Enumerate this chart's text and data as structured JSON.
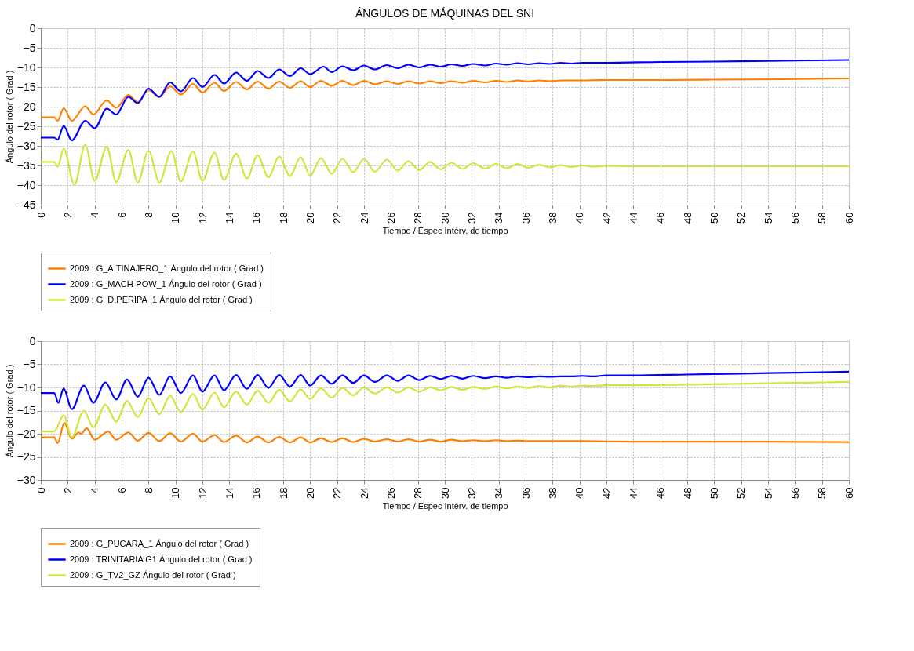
{
  "chart_data": [
    {
      "type": "line",
      "title": "ÁNGULOS DE MÁQUINAS DEL SNI",
      "xlabel": "Tiempo / Espec Intérv. de tiempo",
      "ylabel": "Ángulo del rotor ( Grad )",
      "xlim": [
        0,
        60
      ],
      "xticks": [
        0,
        2,
        4,
        6,
        8,
        10,
        12,
        14,
        16,
        18,
        20,
        22,
        24,
        26,
        28,
        30,
        32,
        34,
        36,
        38,
        40,
        42,
        44,
        46,
        48,
        50,
        52,
        54,
        56,
        58,
        60
      ],
      "ylim": [
        -45,
        0
      ],
      "yticks": [
        0,
        -5,
        -10,
        -15,
        -20,
        -25,
        -30,
        -35,
        -40,
        -45
      ],
      "grid": true,
      "legend": "bottom",
      "line_style": "solid",
      "marker": "none",
      "series": [
        {
          "name": "2009 : G_A.TINAJERO_1 Ángulo del rotor ( Grad )",
          "color": "#ff7f00",
          "x": [
            0,
            1.0,
            1.25,
            1.7,
            2.3,
            3.3,
            3.9,
            4.9,
            5.6,
            6.5,
            7.2,
            8.0,
            8.8,
            9.6,
            10.4,
            11.3,
            12.0,
            12.9,
            13.6,
            14.5,
            15.3,
            16.1,
            16.9,
            17.7,
            18.5,
            19.3,
            20.0,
            20.8,
            21.6,
            22.4,
            23.2,
            24,
            24.8,
            25.7,
            26.5,
            27.3,
            28.1,
            28.9,
            29.7,
            30.5,
            31.3,
            32.1,
            33,
            33.8,
            34.6,
            35.4,
            36.2,
            37,
            37.8,
            38.6,
            40,
            42,
            46,
            50,
            55,
            60
          ],
          "values": [
            -22.7,
            -22.7,
            -23.6,
            -20.4,
            -23.6,
            -19.9,
            -22.0,
            -18.4,
            -20.3,
            -17.0,
            -18.8,
            -15.8,
            -17.6,
            -14.8,
            -16.9,
            -14.2,
            -16.4,
            -13.9,
            -16.0,
            -13.7,
            -15.6,
            -13.6,
            -15.4,
            -13.6,
            -15.2,
            -13.5,
            -15.0,
            -13.4,
            -14.7,
            -13.4,
            -14.5,
            -13.4,
            -14.3,
            -13.5,
            -14.2,
            -13.5,
            -14.1,
            -13.5,
            -14.0,
            -13.5,
            -13.9,
            -13.4,
            -13.8,
            -13.4,
            -13.7,
            -13.3,
            -13.6,
            -13.3,
            -13.5,
            -13.3,
            -13.3,
            -13.2,
            -13.2,
            -13.1,
            -13.0,
            -12.8
          ]
        },
        {
          "name": "2009 : G_MACH-POW_1 Ángulo del rotor ( Grad )",
          "color": "#0000ff",
          "x": [
            0,
            1.0,
            1.25,
            1.7,
            2.3,
            3.3,
            4.0,
            4.9,
            5.6,
            6.5,
            7.2,
            8.0,
            8.8,
            9.6,
            10.4,
            11.3,
            12.0,
            12.9,
            13.6,
            14.5,
            15.3,
            16.1,
            16.9,
            17.7,
            18.5,
            19.3,
            20.0,
            21,
            21.6,
            22.4,
            23.2,
            24,
            24.8,
            25.7,
            26.5,
            27.3,
            28.1,
            28.9,
            29.7,
            30.5,
            31.3,
            32.1,
            33,
            33.8,
            34.6,
            35.4,
            36.2,
            37,
            37.8,
            38.6,
            39.4,
            40.2,
            42,
            46,
            50,
            55,
            60
          ],
          "values": [
            -27.9,
            -27.9,
            -28.4,
            -24.9,
            -28.6,
            -23.6,
            -25.5,
            -20.5,
            -22.0,
            -17.5,
            -19.1,
            -15.4,
            -17.5,
            -13.8,
            -16.1,
            -12.7,
            -15.0,
            -11.9,
            -14.1,
            -11.3,
            -13.4,
            -10.9,
            -12.7,
            -10.5,
            -12.2,
            -10.2,
            -11.7,
            -9.8,
            -11.2,
            -9.7,
            -10.7,
            -9.5,
            -10.5,
            -9.4,
            -10.2,
            -9.3,
            -10.0,
            -9.3,
            -9.8,
            -9.2,
            -9.6,
            -9.1,
            -9.5,
            -9.0,
            -9.3,
            -8.9,
            -9.2,
            -8.9,
            -9.1,
            -8.8,
            -9.0,
            -8.8,
            -8.8,
            -8.6,
            -8.5,
            -8.3,
            -8.1
          ]
        },
        {
          "name": "2009 : G_D.PERIPA_1 Ángulo del rotor ( Grad )",
          "color": "#d0e63a",
          "x": [
            0,
            1.0,
            1.25,
            1.7,
            2.5,
            3.3,
            4.0,
            4.9,
            5.6,
            6.5,
            7.2,
            8.0,
            8.8,
            9.7,
            10.4,
            11.3,
            12.0,
            12.9,
            13.6,
            14.5,
            15.3,
            16.1,
            16.9,
            17.7,
            18.5,
            19.3,
            20.0,
            20.8,
            21.6,
            22.4,
            23.2,
            24,
            24.8,
            25.7,
            26.5,
            27.3,
            28.1,
            28.9,
            29.7,
            30.5,
            31.3,
            32.1,
            33,
            33.8,
            34.6,
            35.4,
            36.2,
            37,
            37.8,
            38.6,
            39.4,
            40.2,
            41,
            42,
            44,
            50,
            60
          ],
          "values": [
            -34.1,
            -34.1,
            -35.3,
            -30.7,
            -39.9,
            -29.7,
            -38.9,
            -30.2,
            -39.2,
            -31.0,
            -39.3,
            -31.2,
            -39.3,
            -31.3,
            -39.1,
            -31.4,
            -38.9,
            -31.7,
            -38.7,
            -32.0,
            -38.3,
            -32.4,
            -38.0,
            -32.7,
            -37.7,
            -32.9,
            -37.6,
            -33.1,
            -37.1,
            -33.3,
            -36.7,
            -33.3,
            -36.6,
            -33.5,
            -36.3,
            -33.9,
            -36.2,
            -34.1,
            -36.0,
            -34.3,
            -35.9,
            -34.4,
            -35.8,
            -34.6,
            -35.7,
            -34.6,
            -35.6,
            -34.8,
            -35.5,
            -34.9,
            -35.4,
            -35.0,
            -35.3,
            -35.1,
            -35.2,
            -35.2,
            -35.2
          ]
        }
      ]
    },
    {
      "type": "line",
      "xlabel": "Tiempo / Espec Intérv. de tiempo",
      "ylabel": "Ángulo del rotor ( Grad )",
      "xlim": [
        0,
        60
      ],
      "xticks": [
        0,
        2,
        4,
        6,
        8,
        10,
        12,
        14,
        16,
        18,
        20,
        22,
        24,
        26,
        28,
        30,
        32,
        34,
        36,
        38,
        40,
        42,
        44,
        46,
        48,
        50,
        52,
        54,
        56,
        58,
        60
      ],
      "ylim": [
        -30,
        0
      ],
      "yticks": [
        0,
        -5,
        -10,
        -15,
        -20,
        -25,
        -30
      ],
      "grid": true,
      "legend": "bottom",
      "line_style": "solid",
      "marker": "none",
      "series": [
        {
          "name": "2009 : G_PUCARA_1 Ángulo del rotor ( Grad )",
          "color": "#ff7f00",
          "x": [
            0,
            1.0,
            1.25,
            1.75,
            2.3,
            2.8,
            3.0,
            3.4,
            4.0,
            5.0,
            5.6,
            6.5,
            7.2,
            8.0,
            8.8,
            9.6,
            10.4,
            11.3,
            12.0,
            12.9,
            13.6,
            14.5,
            15.3,
            16.1,
            16.9,
            17.7,
            18.5,
            19.3,
            20.0,
            20.8,
            21.6,
            22.4,
            23.2,
            24,
            24.8,
            25.7,
            26.5,
            27.3,
            28.1,
            28.9,
            29.7,
            30.5,
            31.3,
            32.1,
            33,
            33.8,
            34.6,
            35.4,
            36.2,
            38,
            40,
            44,
            50,
            60
          ],
          "values": [
            -20.8,
            -20.8,
            -22.0,
            -17.6,
            -21.1,
            -19.7,
            -20.0,
            -18.8,
            -21.3,
            -19.5,
            -21.3,
            -19.7,
            -21.5,
            -19.8,
            -21.6,
            -19.9,
            -21.7,
            -20.0,
            -21.7,
            -20.3,
            -21.8,
            -20.4,
            -21.9,
            -20.6,
            -21.9,
            -20.7,
            -21.9,
            -20.8,
            -21.9,
            -21.0,
            -21.8,
            -21.0,
            -21.8,
            -21.1,
            -21.7,
            -21.2,
            -21.7,
            -21.2,
            -21.7,
            -21.3,
            -21.7,
            -21.3,
            -21.6,
            -21.4,
            -21.6,
            -21.4,
            -21.6,
            -21.5,
            -21.6,
            -21.6,
            -21.6,
            -21.7,
            -21.7,
            -21.8
          ]
        },
        {
          "name": "2009 : TRINITARIA G1 Ángulo del rotor ( Grad )",
          "color": "#0000ff",
          "x": [
            0,
            1.0,
            1.3,
            1.7,
            2.3,
            3.2,
            3.9,
            4.8,
            5.6,
            6.4,
            7.2,
            8.0,
            8.8,
            9.6,
            10.4,
            11.3,
            12.0,
            12.9,
            13.6,
            14.5,
            15.3,
            16.1,
            16.9,
            17.7,
            18.5,
            19.3,
            20.0,
            20.8,
            21.6,
            22.4,
            23.2,
            24,
            24.8,
            25.7,
            26.5,
            27.3,
            28.1,
            28.9,
            29.7,
            30.5,
            31.3,
            32.1,
            33,
            33.8,
            34.6,
            35.4,
            36.2,
            37,
            37.8,
            38.6,
            39.4,
            40.2,
            41,
            42,
            44,
            48,
            52,
            56,
            60
          ],
          "values": [
            -11.2,
            -11.2,
            -13.3,
            -10.2,
            -14.7,
            -9.6,
            -13.3,
            -8.9,
            -12.6,
            -8.3,
            -12.0,
            -7.9,
            -11.6,
            -7.6,
            -11.2,
            -7.4,
            -10.9,
            -7.4,
            -10.6,
            -7.3,
            -10.3,
            -7.3,
            -10.1,
            -7.3,
            -9.8,
            -7.3,
            -9.6,
            -7.4,
            -9.2,
            -7.4,
            -9.0,
            -7.4,
            -8.8,
            -7.4,
            -8.6,
            -7.4,
            -8.4,
            -7.5,
            -8.2,
            -7.5,
            -8.1,
            -7.5,
            -8.0,
            -7.6,
            -7.9,
            -7.6,
            -7.8,
            -7.6,
            -7.7,
            -7.6,
            -7.6,
            -7.5,
            -7.6,
            -7.4,
            -7.4,
            -7.2,
            -7.0,
            -6.8,
            -6.6
          ]
        },
        {
          "name": "2009 : G_TV2_GZ Ángulo del rotor ( Grad )",
          "color": "#d0e63a",
          "x": [
            0,
            1.0,
            1.7,
            2.3,
            3.2,
            3.9,
            4.8,
            5.6,
            6.4,
            7.2,
            8.0,
            8.8,
            9.6,
            10.4,
            11.3,
            12.0,
            12.9,
            13.6,
            14.5,
            15.3,
            16.1,
            16.9,
            17.7,
            18.5,
            19.3,
            20.0,
            20.8,
            21.6,
            22.4,
            23.2,
            24,
            24.8,
            25.7,
            26.5,
            27.3,
            28.1,
            28.9,
            29.7,
            30.5,
            31.3,
            32.1,
            33,
            33.8,
            34.6,
            35.4,
            36.2,
            37,
            37.8,
            38.6,
            39.4,
            40.2,
            41,
            42,
            44,
            48,
            52,
            56,
            60
          ],
          "values": [
            -19.5,
            -19.5,
            -16.0,
            -20.8,
            -15.0,
            -18.6,
            -13.7,
            -17.4,
            -12.9,
            -16.4,
            -12.3,
            -15.8,
            -11.8,
            -15.3,
            -11.4,
            -14.8,
            -11.1,
            -14.3,
            -10.9,
            -13.7,
            -10.7,
            -13.3,
            -10.5,
            -13.0,
            -10.4,
            -12.5,
            -10.2,
            -12.2,
            -10.1,
            -11.7,
            -10.0,
            -11.3,
            -10.0,
            -11.1,
            -10.0,
            -10.9,
            -10.0,
            -10.6,
            -9.9,
            -10.5,
            -9.9,
            -10.3,
            -9.8,
            -10.2,
            -9.8,
            -10.1,
            -9.7,
            -10.0,
            -9.6,
            -9.8,
            -9.6,
            -9.7,
            -9.5,
            -9.5,
            -9.4,
            -9.2,
            -9.0,
            -8.8
          ]
        }
      ]
    }
  ]
}
